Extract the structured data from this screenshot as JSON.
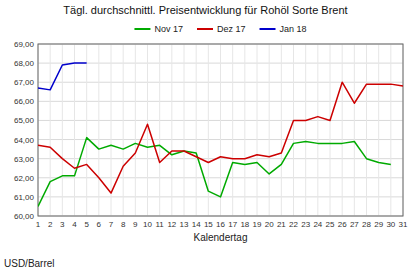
{
  "chart_data": {
    "type": "line",
    "title": "Tägl. durchschnittl. Preisentwicklung für Rohöl Sorte Brent",
    "x_label": "Kalendertag",
    "y_label": "USD/Barrel",
    "x": [
      1,
      2,
      3,
      4,
      5,
      6,
      7,
      8,
      9,
      10,
      11,
      12,
      13,
      14,
      15,
      16,
      17,
      18,
      19,
      20,
      21,
      22,
      23,
      24,
      25,
      26,
      27,
      28,
      29,
      30,
      31
    ],
    "series": [
      {
        "name": "Nov 17",
        "color": "#00AA00",
        "values": [
          60.5,
          61.8,
          62.1,
          62.1,
          64.1,
          63.5,
          63.7,
          63.5,
          63.8,
          63.6,
          63.7,
          63.2,
          63.4,
          63.3,
          61.3,
          61.0,
          62.8,
          62.7,
          62.8,
          62.2,
          62.7,
          63.8,
          63.9,
          63.8,
          63.8,
          63.8,
          63.9,
          63.0,
          62.8,
          62.7,
          null
        ]
      },
      {
        "name": "Dez 17",
        "color": "#CC0000",
        "values": [
          63.7,
          63.6,
          63.0,
          62.5,
          62.7,
          62.0,
          61.2,
          62.6,
          63.3,
          64.8,
          62.8,
          63.4,
          63.4,
          63.1,
          62.8,
          63.1,
          63.0,
          63.0,
          63.2,
          63.1,
          63.3,
          65.0,
          65.0,
          65.2,
          65.0,
          67.0,
          65.9,
          66.9,
          66.9,
          66.9,
          66.8
        ]
      },
      {
        "name": "Jan 18",
        "color": "#0000CC",
        "values": [
          66.7,
          66.6,
          67.9,
          68.0,
          68.0,
          null,
          null,
          null,
          null,
          null,
          null,
          null,
          null,
          null,
          null,
          null,
          null,
          null,
          null,
          null,
          null,
          null,
          null,
          null,
          null,
          null,
          null,
          null,
          null,
          null,
          null
        ]
      }
    ],
    "xlim": [
      1,
      31
    ],
    "xticks": [
      1,
      2,
      3,
      4,
      5,
      6,
      7,
      8,
      9,
      10,
      11,
      12,
      13,
      14,
      15,
      16,
      17,
      18,
      19,
      20,
      21,
      22,
      23,
      24,
      25,
      26,
      27,
      28,
      29,
      30,
      31
    ],
    "ylim": [
      60,
      69
    ],
    "yticks": [
      {
        "value": 60,
        "label": "60,00"
      },
      {
        "value": 61,
        "label": "61,00"
      },
      {
        "value": 62,
        "label": "62,00"
      },
      {
        "value": 63,
        "label": "63,00"
      },
      {
        "value": 64,
        "label": "64,00"
      },
      {
        "value": 65,
        "label": "65,00"
      },
      {
        "value": 66,
        "label": "66,00"
      },
      {
        "value": 67,
        "label": "67,00"
      },
      {
        "value": 68,
        "label": "68,00"
      },
      {
        "value": 69,
        "label": "69,00"
      }
    ],
    "grid": true,
    "legend": "top"
  }
}
